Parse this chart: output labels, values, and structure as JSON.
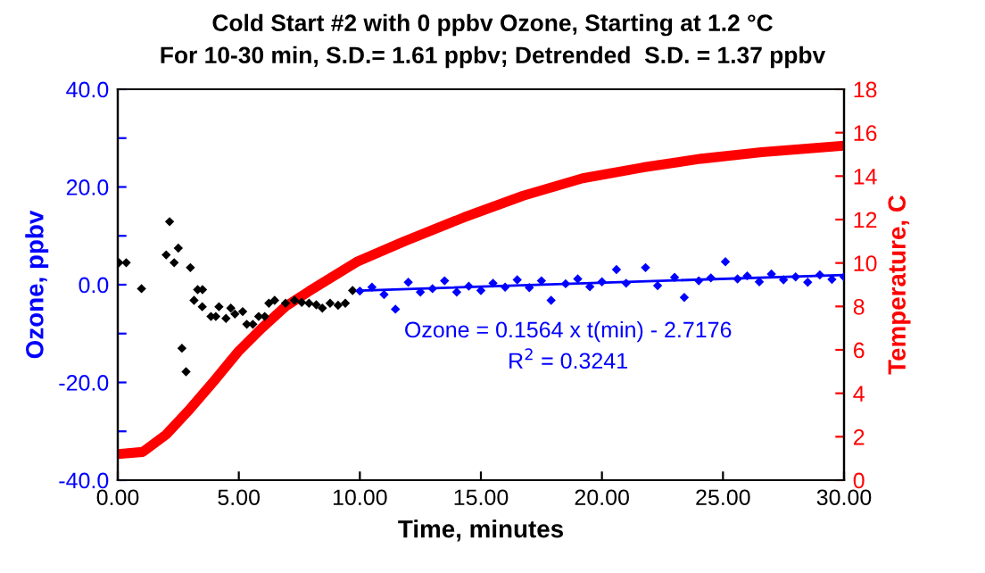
{
  "chart_data": {
    "type": "scatter",
    "title": "Cold Start #2 with 0 ppbv Ozone, Starting at 1.2 °C",
    "subtitle": "For 10-30 min, S.D.= 1.61 ppbv; Detrended  S.D. = 1.37 ppbv",
    "xlabel": "Time, minutes",
    "ylabel": "Ozone, ppbv",
    "y2label": "Temperature, C",
    "xlim": [
      0,
      30
    ],
    "xticks": [
      {
        "value": 0,
        "label": "0.00"
      },
      {
        "value": 5,
        "label": "5.00"
      },
      {
        "value": 10,
        "label": "10.00"
      },
      {
        "value": 15,
        "label": "15.00"
      },
      {
        "value": 20,
        "label": "20.00"
      },
      {
        "value": 25,
        "label": "25.00"
      },
      {
        "value": 30,
        "label": "30.00"
      }
    ],
    "ylim": [
      -40,
      40
    ],
    "yticks": [
      {
        "value": -40,
        "label": "-40.0"
      },
      {
        "value": -30,
        "label": null
      },
      {
        "value": -20,
        "label": "-20.0"
      },
      {
        "value": -10,
        "label": null
      },
      {
        "value": 0,
        "label": "0.0"
      },
      {
        "value": 10,
        "label": null
      },
      {
        "value": 20,
        "label": "20.0"
      },
      {
        "value": 30,
        "label": null
      },
      {
        "value": 40,
        "label": "40.0"
      }
    ],
    "y2lim": [
      0,
      18
    ],
    "y2ticks": [
      0,
      2,
      4,
      6,
      8,
      10,
      12,
      14,
      16,
      18
    ],
    "grid": false,
    "legend": false,
    "annotations": [
      "Ozone = 0.1564 x t(min) - 2.7176",
      "R$^{2}$ = 0.3241"
    ],
    "series": [
      {
        "type": "line",
        "marker": "none",
        "axis": "y2",
        "color": "#ff0000",
        "x": [
          0,
          1.03,
          2.0,
          3.0,
          4.0,
          4.96,
          5.95,
          6.93,
          7.9,
          9.87,
          11.84,
          14.3,
          16.75,
          19.2,
          21.7,
          24.1,
          26.6,
          30
        ],
        "values": [
          1.2,
          1.3,
          2.1,
          3.3,
          4.6,
          5.9,
          7.0,
          8.0,
          8.7,
          10.05,
          11.0,
          12.1,
          13.1,
          13.9,
          14.4,
          14.8,
          15.1,
          15.4
        ]
      },
      {
        "marker": "diamond",
        "color": "#000000",
        "x": [
          0.05,
          0.35,
          0.98,
          2.0,
          2.14,
          2.33,
          2.5,
          2.65,
          2.82,
          3.0,
          3.15,
          3.3,
          3.49,
          3.5,
          3.85,
          4.05,
          4.18,
          4.47,
          4.67,
          4.84,
          5.16,
          5.33,
          5.58,
          5.82,
          6.07,
          6.24,
          6.48,
          6.93,
          7.3,
          7.6,
          7.9,
          8.2,
          8.45,
          8.77,
          9.1,
          9.4,
          9.7
        ],
        "values": [
          4.5,
          4.5,
          -0.8,
          6.1,
          12.9,
          4.5,
          7.5,
          -13,
          -17.8,
          3.5,
          -3.2,
          -1.0,
          -4.5,
          -1.0,
          -6.5,
          -6.5,
          -4.5,
          -6.9,
          -4.8,
          -6.0,
          -5.5,
          -8.1,
          -8.1,
          -6.5,
          -6.5,
          -3.8,
          -3.2,
          -3.8,
          -3.2,
          -3.6,
          -3.8,
          -4.1,
          -4.8,
          -3.8,
          -4.2,
          -3.8,
          -1.2
        ]
      },
      {
        "marker": "diamond",
        "color": "#0000ff",
        "x": [
          10.0,
          10.5,
          11.0,
          11.47,
          12.0,
          12.5,
          13.0,
          13.5,
          14.0,
          14.5,
          15.0,
          15.5,
          16.0,
          16.5,
          17.0,
          17.5,
          17.9,
          18.5,
          19.0,
          19.5,
          20.0,
          20.6,
          21.0,
          21.8,
          22.3,
          23.0,
          23.4,
          24.0,
          24.5,
          25.1,
          25.6,
          26.0,
          26.5,
          27.0,
          27.5,
          28.0,
          28.5,
          29.0,
          29.5,
          30.0
        ],
        "values": [
          -1.3,
          -0.5,
          -2.0,
          -5.0,
          0.5,
          -1.5,
          -0.8,
          0.8,
          -1.5,
          -0.3,
          -1.2,
          0.3,
          -0.5,
          1.0,
          -0.6,
          0.8,
          -3.2,
          0.2,
          1.2,
          -0.4,
          0.6,
          3.1,
          0.3,
          3.5,
          -0.2,
          1.5,
          -2.6,
          0.8,
          1.4,
          4.7,
          1.2,
          1.8,
          0.6,
          2.2,
          1.0,
          1.6,
          0.5,
          2.0,
          1.1,
          1.6
        ]
      },
      {
        "type": "line",
        "marker": "none",
        "color": "#0000ff",
        "x": [
          10,
          30
        ],
        "values": [
          -1.2,
          2.0
        ]
      }
    ]
  }
}
